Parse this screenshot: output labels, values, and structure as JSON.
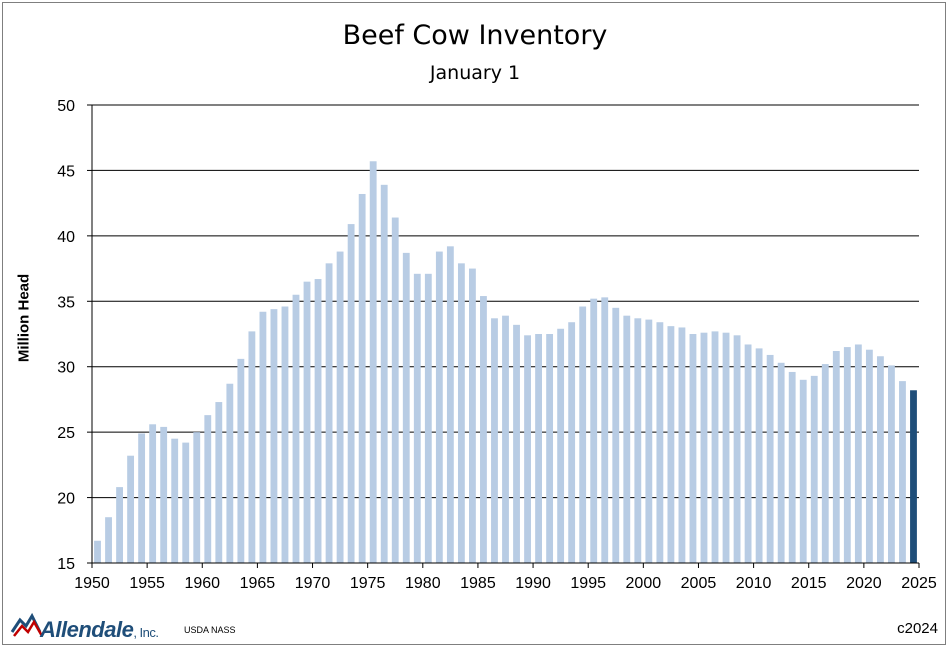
{
  "chart_data": {
    "type": "bar",
    "title": "Beef Cow Inventory",
    "subtitle": "January 1",
    "xlabel": "",
    "ylabel": "Million Head",
    "ylim": [
      15,
      50
    ],
    "yticks": [
      15,
      20,
      25,
      30,
      35,
      40,
      45,
      50
    ],
    "xlim": [
      1950,
      2025
    ],
    "xticks": [
      1950,
      1955,
      1960,
      1965,
      1970,
      1975,
      1980,
      1985,
      1990,
      1995,
      2000,
      2005,
      2010,
      2015,
      2020,
      2025
    ],
    "grid": "horizontal",
    "bar_color": "#b8cce4",
    "highlight_color": "#1f4e79",
    "highlight_year": 2024,
    "x": [
      1950,
      1951,
      1952,
      1953,
      1954,
      1955,
      1956,
      1957,
      1958,
      1959,
      1960,
      1961,
      1962,
      1963,
      1964,
      1965,
      1966,
      1967,
      1968,
      1969,
      1970,
      1971,
      1972,
      1973,
      1974,
      1975,
      1976,
      1977,
      1978,
      1979,
      1980,
      1981,
      1982,
      1983,
      1984,
      1985,
      1986,
      1987,
      1988,
      1989,
      1990,
      1991,
      1992,
      1993,
      1994,
      1995,
      1996,
      1997,
      1998,
      1999,
      2000,
      2001,
      2002,
      2003,
      2004,
      2005,
      2006,
      2007,
      2008,
      2009,
      2010,
      2011,
      2012,
      2013,
      2014,
      2015,
      2016,
      2017,
      2018,
      2019,
      2020,
      2021,
      2022,
      2023,
      2024
    ],
    "values": [
      16.7,
      18.5,
      20.8,
      23.2,
      24.9,
      25.6,
      25.4,
      24.5,
      24.2,
      25.0,
      26.3,
      27.3,
      28.7,
      30.6,
      32.7,
      34.2,
      34.4,
      34.6,
      35.5,
      36.5,
      36.7,
      37.9,
      38.8,
      40.9,
      43.2,
      45.7,
      43.9,
      41.4,
      38.7,
      37.1,
      37.1,
      38.8,
      39.2,
      37.9,
      37.5,
      35.4,
      33.7,
      33.9,
      33.2,
      32.4,
      32.5,
      32.5,
      32.9,
      33.4,
      34.6,
      35.2,
      35.3,
      34.5,
      33.9,
      33.7,
      33.6,
      33.4,
      33.1,
      33.0,
      32.5,
      32.6,
      32.7,
      32.6,
      32.4,
      31.7,
      31.4,
      30.9,
      30.3,
      29.6,
      29.0,
      29.3,
      30.2,
      31.2,
      31.5,
      31.7,
      31.3,
      30.8,
      30.1,
      28.9,
      28.2
    ]
  },
  "branding": {
    "logo_name": "Allendale",
    "logo_suffix": ", Inc.",
    "source": "USDA NASS",
    "copyright": "c2024"
  }
}
